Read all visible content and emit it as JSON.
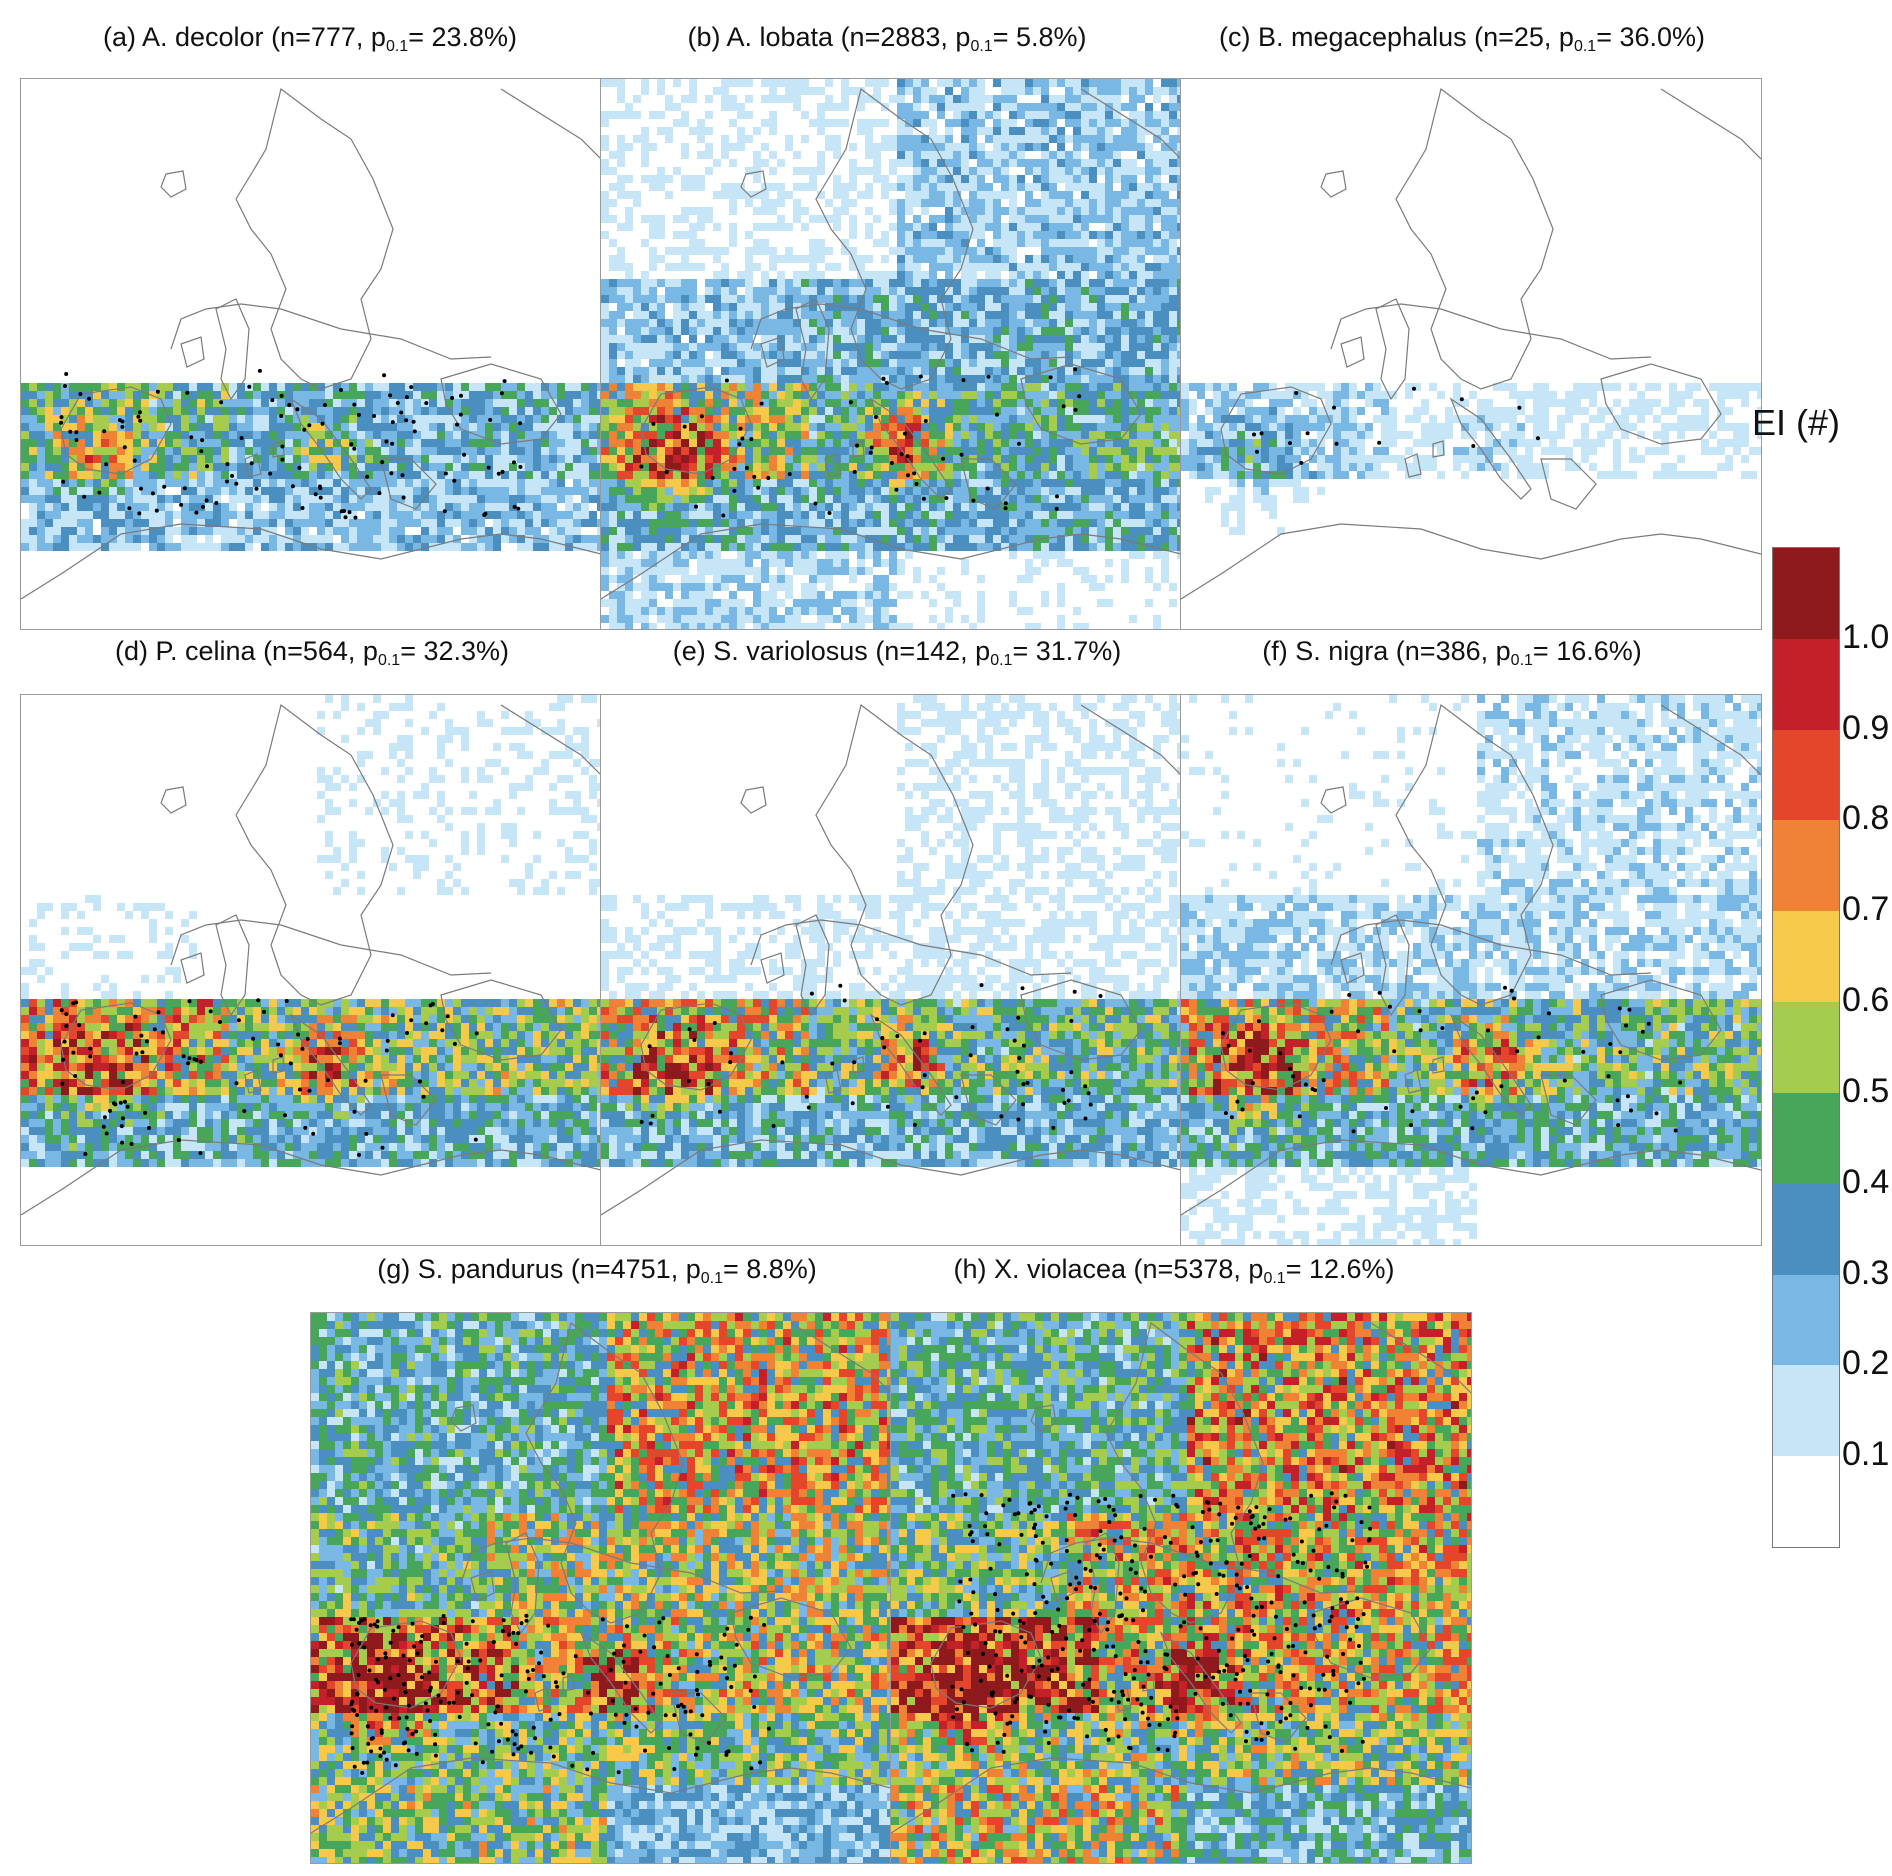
{
  "panels": [
    {
      "id": "a",
      "letter": "(a)",
      "species": "A. decolor",
      "n": "777",
      "p": "23.8%",
      "profile": [
        [
          0.1,
          0.42,
          0.12
        ],
        [
          0.2,
          0.4,
          0.12
        ],
        [
          0.3,
          0.36,
          0.1
        ],
        [
          0.22,
          0.3,
          0.18
        ],
        [
          0.35,
          0.2,
          0.05
        ]
      ],
      "occ": "dense-south"
    },
    {
      "id": "b",
      "letter": "(b)",
      "species": "A. lobata",
      "n": "2883",
      "p": "5.8%",
      "profile": [
        [
          0.15,
          0.4,
          0.28
        ],
        [
          0.4,
          0.5,
          0.35
        ],
        [
          0.6,
          0.46,
          0.3
        ],
        [
          0.4,
          0.4,
          0.3
        ],
        [
          0.5,
          0.3,
          0.25
        ]
      ],
      "occ": "scattered"
    },
    {
      "id": "c",
      "letter": "(c)",
      "species": "B. megacephalus",
      "n": "25",
      "p": "36.0%",
      "profile": [
        [
          0.1,
          0.3,
          0.02
        ],
        [
          0.05,
          0.2,
          0.02
        ],
        [
          0.1,
          0.15,
          0.02
        ],
        [
          0.2,
          0.15,
          0.03
        ],
        [
          0.3,
          0.1,
          0.02
        ]
      ],
      "occ": "few"
    },
    {
      "id": "d",
      "letter": "(d)",
      "species": "P. celina",
      "n": "564",
      "p": "32.3%",
      "profile": [
        [
          0.2,
          0.55,
          0.15
        ],
        [
          0.35,
          0.6,
          0.12
        ],
        [
          0.5,
          0.5,
          0.1
        ],
        [
          0.25,
          0.3,
          0.08
        ],
        [
          0.4,
          0.25,
          0.05
        ]
      ],
      "occ": "west"
    },
    {
      "id": "e",
      "letter": "(e)",
      "species": "S. variolosus",
      "n": "142",
      "p": "31.7%",
      "profile": [
        [
          0.15,
          0.4,
          0.18
        ],
        [
          0.35,
          0.55,
          0.18
        ],
        [
          0.5,
          0.45,
          0.15
        ],
        [
          0.3,
          0.35,
          0.12
        ],
        [
          0.45,
          0.25,
          0.1
        ]
      ],
      "occ": "scattered"
    },
    {
      "id": "f",
      "letter": "(f)",
      "species": "S. nigra",
      "n": "386",
      "p": "16.6%",
      "profile": [
        [
          0.25,
          0.45,
          0.22
        ],
        [
          0.35,
          0.55,
          0.24
        ],
        [
          0.55,
          0.5,
          0.2
        ],
        [
          0.4,
          0.4,
          0.22
        ],
        [
          0.5,
          0.35,
          0.18
        ]
      ],
      "occ": "scattered"
    },
    {
      "id": "g",
      "letter": "(g)",
      "species": "S. pandurus",
      "n": "4751",
      "p": "8.8%",
      "profile": [
        [
          0.2,
          0.6,
          0.7
        ],
        [
          0.4,
          0.7,
          0.6
        ],
        [
          0.55,
          0.65,
          0.55
        ],
        [
          0.45,
          0.55,
          0.6
        ],
        [
          0.45,
          0.45,
          0.55
        ]
      ],
      "occ": "dense-west"
    },
    {
      "id": "h",
      "letter": "(h)",
      "species": "X. violacea",
      "n": "5378",
      "p": "12.6%",
      "profile": [
        [
          0.1,
          0.5,
          0.75
        ],
        [
          0.45,
          0.75,
          0.7
        ],
        [
          0.6,
          0.7,
          0.6
        ],
        [
          0.55,
          0.55,
          0.65
        ],
        [
          0.35,
          0.35,
          0.65
        ]
      ],
      "occ": "dense-central"
    }
  ],
  "colorbar": {
    "title": "EI (#)",
    "labels": [
      "0.1",
      "0.2",
      "0.3",
      "0.4",
      "0.5",
      "0.6",
      "0.7",
      "0.8",
      "0.9",
      "1.0"
    ],
    "colors": [
      "#ffffff",
      "#c6e6f8",
      "#79b8e4",
      "#4a8fbf",
      "#47a65a",
      "#a6cc4e",
      "#f7c94b",
      "#f08235",
      "#e3462a",
      "#c3202a",
      "#8e1a1e"
    ]
  }
}
